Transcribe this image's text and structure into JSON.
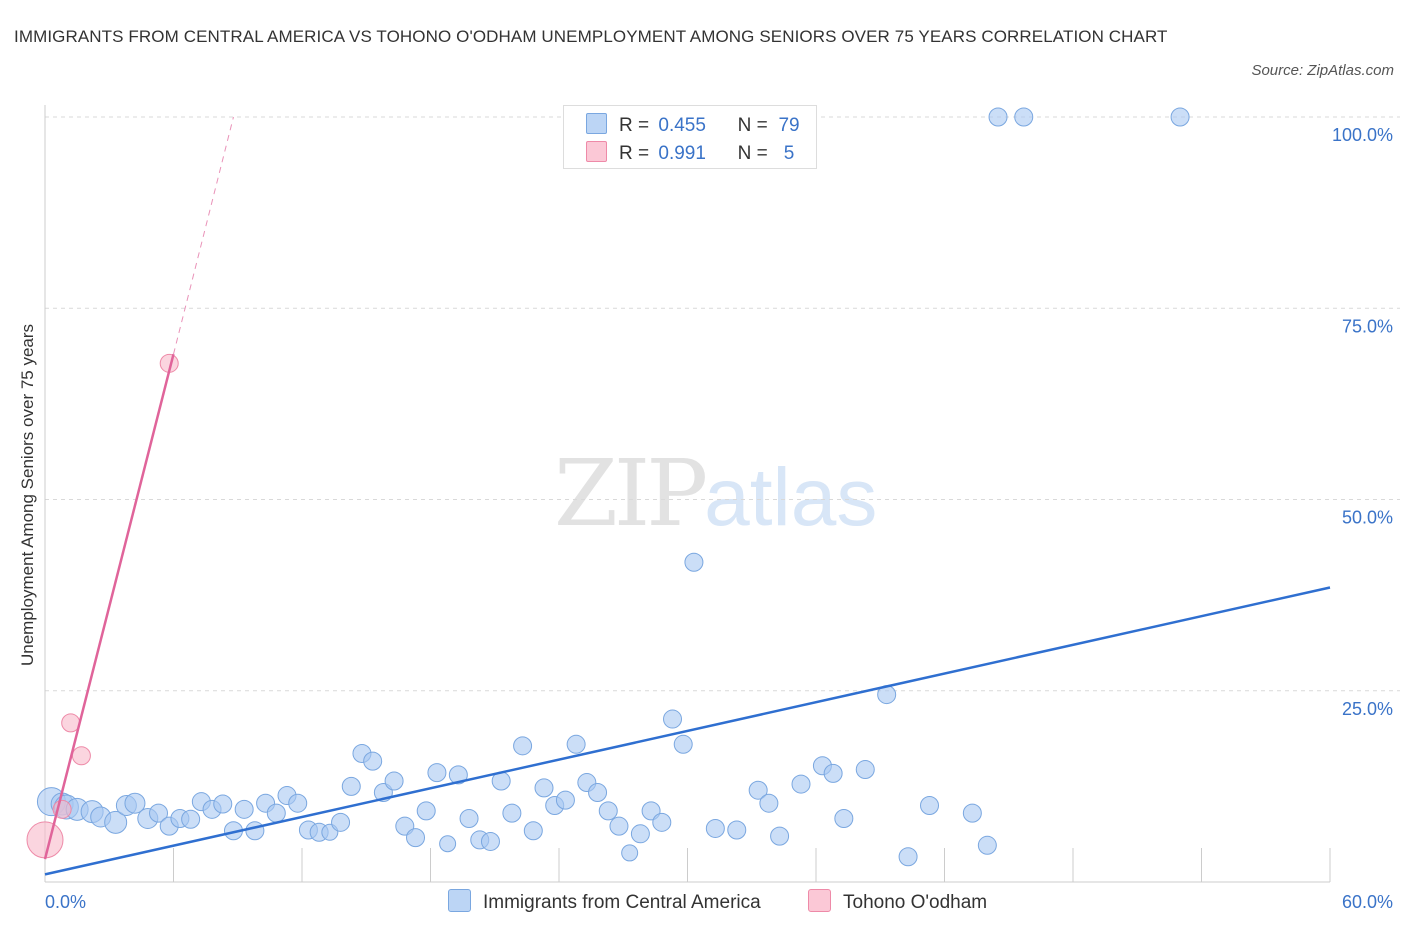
{
  "title": "IMMIGRANTS FROM CENTRAL AMERICA VS TOHONO O'ODHAM UNEMPLOYMENT AMONG SENIORS OVER 75 YEARS CORRELATION CHART",
  "source": "Source: ZipAtlas.com",
  "watermark": {
    "zip": "ZIP",
    "atlas": "atlas"
  },
  "colors": {
    "blue_fill": "#a9c8f2",
    "blue_stroke": "#7aa7e0",
    "blue_line": "#2f6fd0",
    "pink_fill": "#f8b9ca",
    "pink_stroke": "#ee8aa8",
    "pink_line": "#e0649a",
    "grid": "#d9d9d9",
    "tick_text": "#3a73c8"
  },
  "legend": {
    "rows": [
      {
        "r_label": "R =",
        "r_value": "0.455",
        "n_label": "N =",
        "n_value": "79"
      },
      {
        "r_label": "R =",
        "r_value": "0.991",
        "n_label": "N =",
        "n_value": "5"
      }
    ]
  },
  "chart_data": {
    "type": "scatter",
    "title": "IMMIGRANTS FROM CENTRAL AMERICA VS TOHONO O'ODHAM UNEMPLOYMENT AMONG SENIORS OVER 75 YEARS CORRELATION CHART",
    "xlabel": "",
    "ylabel": "Unemployment Among Seniors over 75 years",
    "xlim": [
      0,
      60
    ],
    "ylim": [
      0,
      100
    ],
    "x_tick_labels": [
      "0.0%",
      "60.0%"
    ],
    "y_ticks": [
      25,
      50,
      75,
      100
    ],
    "y_tick_labels": [
      "25.0%",
      "50.0%",
      "75.0%",
      "100.0%"
    ],
    "grid": true,
    "series": [
      {
        "name": "Immigrants from Central America",
        "color": "#a9c8f2",
        "points": [
          [
            0.3,
            10.5,
            14
          ],
          [
            0.8,
            10.2,
            11
          ],
          [
            1.0,
            9.8,
            12
          ],
          [
            1.5,
            9.5,
            11
          ],
          [
            2.2,
            9.2,
            11
          ],
          [
            2.6,
            8.5,
            10
          ],
          [
            3.3,
            7.8,
            11
          ],
          [
            3.8,
            10.0,
            10
          ],
          [
            4.2,
            10.3,
            10
          ],
          [
            4.8,
            8.3,
            10
          ],
          [
            5.3,
            9.0,
            9
          ],
          [
            5.8,
            7.3,
            9
          ],
          [
            6.3,
            8.3,
            9
          ],
          [
            6.8,
            8.2,
            9
          ],
          [
            7.3,
            10.5,
            9
          ],
          [
            7.8,
            9.5,
            9
          ],
          [
            8.3,
            10.2,
            9
          ],
          [
            8.8,
            6.7,
            9
          ],
          [
            9.3,
            9.5,
            9
          ],
          [
            9.8,
            6.7,
            9
          ],
          [
            10.3,
            10.3,
            9
          ],
          [
            10.8,
            9.0,
            9
          ],
          [
            11.3,
            11.3,
            9
          ],
          [
            11.8,
            10.3,
            9
          ],
          [
            12.3,
            6.8,
            9
          ],
          [
            12.8,
            6.5,
            9
          ],
          [
            13.3,
            6.5,
            8
          ],
          [
            13.8,
            7.8,
            9
          ],
          [
            14.3,
            12.5,
            9
          ],
          [
            14.8,
            16.8,
            9
          ],
          [
            15.3,
            15.8,
            9
          ],
          [
            15.8,
            11.7,
            9
          ],
          [
            16.3,
            13.2,
            9
          ],
          [
            16.8,
            7.3,
            9
          ],
          [
            17.3,
            5.8,
            9
          ],
          [
            17.8,
            9.3,
            9
          ],
          [
            18.3,
            14.3,
            9
          ],
          [
            18.8,
            5.0,
            8
          ],
          [
            19.3,
            14.0,
            9
          ],
          [
            19.8,
            8.3,
            9
          ],
          [
            20.3,
            5.5,
            9
          ],
          [
            20.8,
            5.3,
            9
          ],
          [
            21.3,
            13.2,
            9
          ],
          [
            21.8,
            9.0,
            9
          ],
          [
            22.3,
            17.8,
            9
          ],
          [
            22.8,
            6.7,
            9
          ],
          [
            23.3,
            12.3,
            9
          ],
          [
            23.8,
            10.0,
            9
          ],
          [
            24.3,
            10.7,
            9
          ],
          [
            24.8,
            18.0,
            9
          ],
          [
            25.3,
            13.0,
            9
          ],
          [
            25.8,
            11.7,
            9
          ],
          [
            26.3,
            9.3,
            9
          ],
          [
            26.8,
            7.3,
            9
          ],
          [
            27.3,
            3.8,
            8
          ],
          [
            27.8,
            6.3,
            9
          ],
          [
            28.3,
            9.3,
            9
          ],
          [
            28.8,
            7.8,
            9
          ],
          [
            29.3,
            21.3,
            9
          ],
          [
            29.8,
            18.0,
            9
          ],
          [
            30.3,
            41.8,
            9
          ],
          [
            31.3,
            7.0,
            9
          ],
          [
            32.3,
            6.8,
            9
          ],
          [
            33.3,
            12.0,
            9
          ],
          [
            33.8,
            10.3,
            9
          ],
          [
            34.3,
            6.0,
            9
          ],
          [
            35.3,
            12.8,
            9
          ],
          [
            36.3,
            15.2,
            9
          ],
          [
            36.8,
            14.2,
            9
          ],
          [
            37.3,
            8.3,
            9
          ],
          [
            38.3,
            14.7,
            9
          ],
          [
            39.3,
            24.5,
            9
          ],
          [
            40.3,
            3.3,
            9
          ],
          [
            41.3,
            10.0,
            9
          ],
          [
            43.3,
            9.0,
            9
          ],
          [
            44.0,
            4.8,
            9
          ],
          [
            44.5,
            100.0,
            9
          ],
          [
            45.7,
            100.0,
            9
          ],
          [
            53.0,
            100.0,
            9
          ]
        ],
        "trendline": {
          "x": [
            0,
            60
          ],
          "y": [
            1.0,
            38.5
          ]
        }
      },
      {
        "name": "Tohono O'odham",
        "color": "#f8b9ca",
        "points": [
          [
            0.0,
            5.5,
            18
          ],
          [
            0.8,
            9.5,
            9
          ],
          [
            1.2,
            20.8,
            9
          ],
          [
            1.7,
            16.5,
            9
          ],
          [
            5.8,
            67.8,
            9
          ]
        ],
        "trendline": {
          "x": [
            0,
            6
          ],
          "y": [
            3.0,
            69.0
          ]
        },
        "trendline_extension": {
          "x": [
            6,
            8.8
          ],
          "y": [
            69.0,
            100.0
          ]
        }
      }
    ],
    "legend": [
      "Immigrants from Central America",
      "Tohono O'odham"
    ]
  }
}
